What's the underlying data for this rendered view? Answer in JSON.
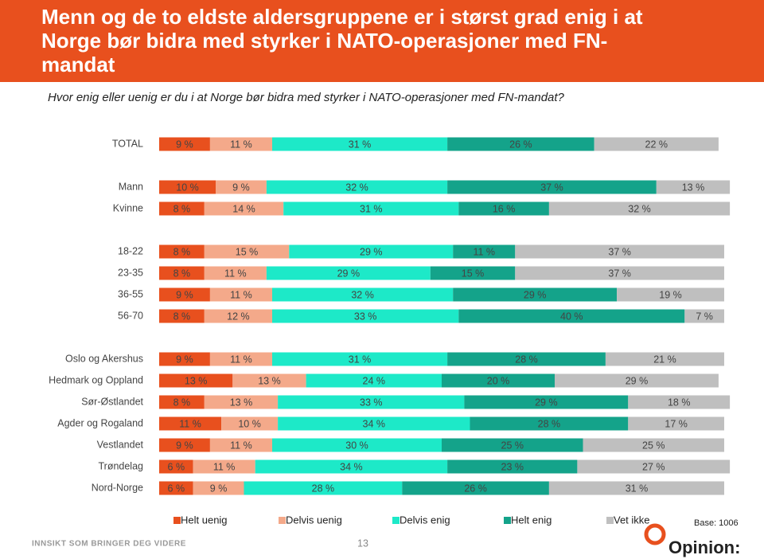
{
  "title": "Menn og de to eldste aldersgruppene er i størst grad enig i at Norge bør bidra med styrker i NATO-operasjoner med FN-mandat",
  "chart_data": {
    "type": "stacked-bar-horizontal",
    "subtitle": "Hvor enig eller uenig er du i at Norge bør bidra med styrker i NATO-operasjoner med FN-mandat?",
    "categories": [
      "TOTAL",
      "Mann",
      "Kvinne",
      "18-22",
      "23-35",
      "36-55",
      "56-70",
      "Oslo og Akershus",
      "Hedmark og Oppland",
      "Sør-Østlandet",
      "Agder og Rogaland",
      "Vestlandet",
      "Trøndelag",
      "Nord-Norge"
    ],
    "series": [
      {
        "name": "Helt uenig",
        "color": "#e8501e",
        "values": [
          9,
          10,
          8,
          8,
          8,
          9,
          8,
          9,
          13,
          8,
          11,
          9,
          6,
          6
        ],
        "value_labels": [
          "9 %",
          "10 %",
          "8 %",
          "8 %",
          "8 %",
          "9 %",
          "8 %",
          "9 %",
          "13 %",
          "8 %",
          "11 %",
          "9 %",
          "6 %",
          "6 %"
        ]
      },
      {
        "name": "Delvis uenig",
        "color": "#f4a98a",
        "values": [
          11,
          9,
          14,
          15,
          11,
          11,
          12,
          11,
          13,
          13,
          10,
          11,
          11,
          9
        ],
        "value_labels": [
          "11 %",
          "9 %",
          "14 %",
          "15 %",
          "11 %",
          "11 %",
          "12 %",
          "11 %",
          "13 %",
          "13 %",
          "10 %",
          "11 %",
          "11 %",
          "9 %"
        ]
      },
      {
        "name": "Delvis enig",
        "color": "#1de9c8",
        "values": [
          31,
          32,
          31,
          29,
          29,
          32,
          33,
          31,
          24,
          33,
          34,
          30,
          34,
          28
        ],
        "value_labels": [
          "31 %",
          "32 %",
          "31 %",
          "29 %",
          "29 %",
          "32 %",
          "33 %",
          "31 %",
          "24 %",
          "33 %",
          "34 %",
          "30 %",
          "34 %",
          "28 %"
        ]
      },
      {
        "name": "Helt enig",
        "color": "#14a38a",
        "values": [
          26,
          37,
          16,
          11,
          15,
          29,
          40,
          28,
          20,
          29,
          28,
          25,
          23,
          26
        ],
        "value_labels": [
          "26 %",
          "37 %",
          "16 %",
          "11 %",
          "15 %",
          "29 %",
          "40 %",
          "28 %",
          "20 %",
          "29 %",
          "28 %",
          "25 %",
          "23 %",
          "26 %"
        ]
      },
      {
        "name": "Vet ikke",
        "color": "#bfbfbf",
        "values": [
          22,
          13,
          32,
          37,
          37,
          19,
          7,
          21,
          29,
          18,
          17,
          25,
          27,
          31
        ],
        "value_labels": [
          "22 %",
          "13 %",
          "32 %",
          "37 %",
          "37 %",
          "19 %",
          "7 %",
          "21 %",
          "29 %",
          "18 %",
          "17 %",
          "25 %",
          "27 %",
          "31 %"
        ]
      }
    ],
    "base_note": "Base: 1006"
  },
  "footer": {
    "tagline": "INNSIKT SOM BRINGER DEG VIDERE",
    "page_number": "13",
    "logo": "Opinion:"
  }
}
